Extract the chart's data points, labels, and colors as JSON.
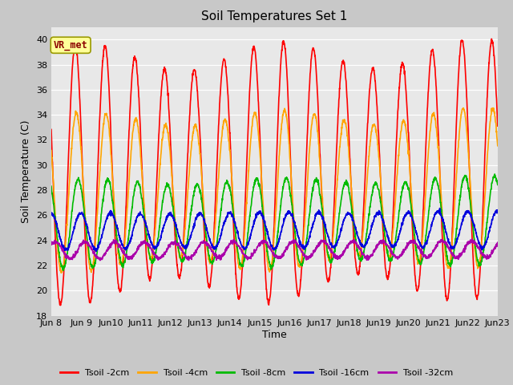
{
  "title": "Soil Temperatures Set 1",
  "xlabel": "Time",
  "ylabel": "Soil Temperature (C)",
  "ylim": [
    18,
    41
  ],
  "yticks": [
    18,
    20,
    22,
    24,
    26,
    28,
    30,
    32,
    34,
    36,
    38,
    40
  ],
  "fig_facecolor": "#c8c8c8",
  "plot_facecolor": "#e8e8e8",
  "series_colors": [
    "#ff0000",
    "#ffa500",
    "#00bb00",
    "#0000dd",
    "#aa00aa"
  ],
  "series_labels": [
    "Tsoil -2cm",
    "Tsoil -4cm",
    "Tsoil -8cm",
    "Tsoil -16cm",
    "Tsoil -32cm"
  ],
  "n_days": 15,
  "start_day": 8,
  "annotation_text": "VR_met",
  "annotation_color": "#8b0000",
  "annotation_bg": "#ffff99",
  "annotation_border": "#999900",
  "linewidth": 1.2,
  "grid_color": "#ffffff",
  "title_fontsize": 11,
  "label_fontsize": 9,
  "tick_fontsize": 8
}
